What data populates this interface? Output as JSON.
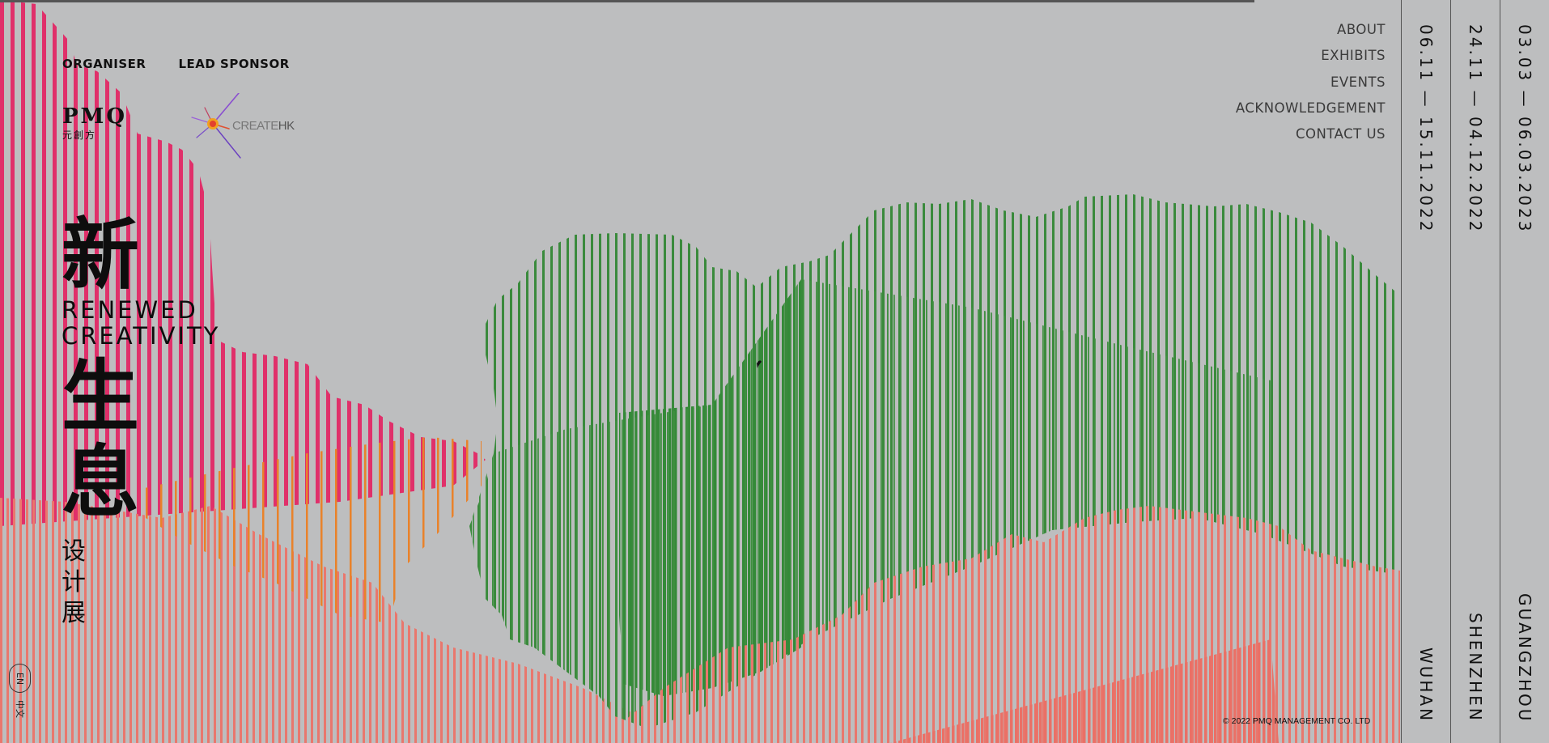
{
  "sponsors": {
    "organiser_label": "ORGANISER",
    "lead_sponsor_label": "LEAD SPONSOR",
    "pmq_logo_text": "PMQ",
    "pmq_logo_sub": "元創方",
    "createhk_text_a": "CREATE",
    "createhk_text_b": "HK"
  },
  "title": {
    "cn_char1": "新",
    "en_line1": "RENEWED",
    "en_line2": "CREATIVITY",
    "cn_char2": "生",
    "cn_char3": "息",
    "cn_sub1": "设",
    "cn_sub2": "计",
    "cn_sub3": "展"
  },
  "language": {
    "en": "EN",
    "zh": "中文"
  },
  "nav": {
    "about": "ABOUT",
    "exhibits": "EXHIBITS",
    "events": "EVENTS",
    "acknowledgement": "ACKNOWLEDGEMENT",
    "contact": "CONTACT US"
  },
  "venues": [
    {
      "dates": "06.11 — 15.11.2022",
      "city": "WUHAN"
    },
    {
      "dates": "24.11 — 04.12.2022",
      "city": "SHENZHEN"
    },
    {
      "dates": "03.03 — 06.03.2023",
      "city": "GUANGZHOU"
    }
  ],
  "footer": {
    "copyright": "© 2022 PMQ MANAGEMENT CO. LTD"
  },
  "colors": {
    "background": "#bdbebf",
    "pink_stripes": "#e0306a",
    "salmon_stripes": "#e9776d",
    "orange_stripes": "#e9822a",
    "green_stripes": "#3a8a3c"
  }
}
